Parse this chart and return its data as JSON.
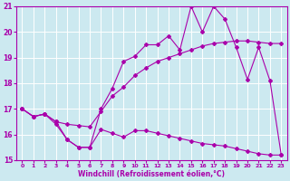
{
  "xlabel": "Windchill (Refroidissement éolien,°C)",
  "xlim": [
    -0.5,
    23.5
  ],
  "ylim": [
    15,
    21
  ],
  "xticks": [
    0,
    1,
    2,
    3,
    4,
    5,
    6,
    7,
    8,
    9,
    10,
    11,
    12,
    13,
    14,
    15,
    16,
    17,
    18,
    19,
    20,
    21,
    22,
    23
  ],
  "yticks": [
    15,
    16,
    17,
    18,
    19,
    20,
    21
  ],
  "background_color": "#cce9f0",
  "grid_color": "#ffffff",
  "line_color": "#aa00aa",
  "line1_x": [
    0,
    1,
    2,
    3,
    4,
    5,
    6,
    7,
    8,
    9,
    10,
    11,
    12,
    13,
    14,
    15,
    16,
    17,
    18,
    19,
    20,
    21,
    22,
    23
  ],
  "line1_y": [
    17.0,
    16.7,
    16.8,
    16.4,
    15.8,
    15.5,
    15.5,
    16.2,
    16.05,
    15.9,
    16.15,
    16.15,
    16.05,
    15.95,
    15.85,
    15.75,
    15.65,
    15.6,
    15.55,
    15.45,
    15.35,
    15.25,
    15.2,
    15.2
  ],
  "line2_x": [
    0,
    1,
    2,
    3,
    4,
    5,
    6,
    7,
    8,
    9,
    10,
    11,
    12,
    13,
    14,
    15,
    16,
    17,
    18,
    19,
    20,
    21,
    22,
    23
  ],
  "line2_y": [
    17.0,
    16.7,
    16.8,
    16.5,
    16.4,
    16.35,
    16.3,
    16.9,
    17.5,
    17.85,
    18.3,
    18.6,
    18.85,
    19.0,
    19.15,
    19.3,
    19.45,
    19.55,
    19.6,
    19.65,
    19.65,
    19.6,
    19.55,
    19.55
  ],
  "line3_x": [
    0,
    1,
    2,
    3,
    4,
    5,
    6,
    7,
    8,
    9,
    10,
    11,
    12,
    13,
    14,
    15,
    16,
    17,
    18,
    19,
    20,
    21,
    22,
    23
  ],
  "line3_y": [
    17.0,
    16.7,
    16.8,
    16.5,
    15.8,
    15.5,
    15.5,
    17.0,
    17.8,
    18.85,
    19.05,
    19.5,
    19.5,
    19.85,
    19.3,
    21.0,
    20.0,
    21.0,
    20.5,
    19.4,
    18.15,
    19.4,
    18.1,
    15.2
  ]
}
